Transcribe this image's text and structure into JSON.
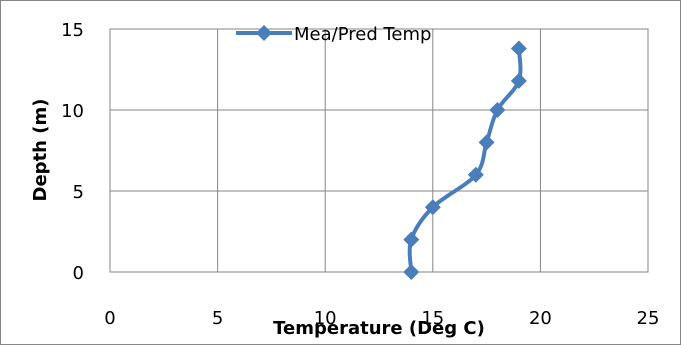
{
  "chart_data": {
    "type": "line",
    "title": "",
    "xlabel": "Temperature (Deg C)",
    "ylabel": "Depth (m)",
    "xlim": [
      0,
      25
    ],
    "ylim": [
      0,
      15
    ],
    "xticks": [
      "0",
      "5",
      "10",
      "15",
      "20",
      "25"
    ],
    "yticks": [
      "0",
      "5",
      "10",
      "15"
    ],
    "grid": true,
    "legend": "top-center",
    "series": [
      {
        "name": "Mea/Pred Temp",
        "color": "#4a7ebb",
        "marker": "diamond",
        "x": [
          14,
          14,
          15,
          17,
          17.5,
          18,
          19,
          19
        ],
        "y": [
          0,
          2,
          4,
          6,
          8,
          10,
          11.8,
          13.8
        ]
      }
    ]
  }
}
